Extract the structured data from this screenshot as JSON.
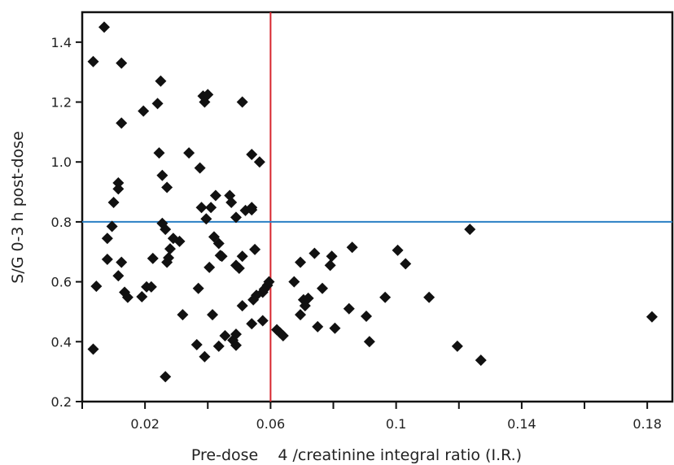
{
  "chart_data": {
    "type": "scatter",
    "xlabel": "Pre-dose    4 /creatinine integral ratio (I.R.)",
    "ylabel": "S/G 0-3 h post-dose",
    "xlim": [
      0.0,
      0.188
    ],
    "ylim": [
      0.2,
      1.5
    ],
    "x_ticks": [
      0.02,
      0.06,
      0.1,
      0.14,
      0.18
    ],
    "x_tick_labels": [
      "0.02",
      "0.06",
      "0.1",
      "0.14",
      "0.18"
    ],
    "x_minor_ticks": [
      0.0,
      0.04,
      0.08,
      0.12,
      0.16
    ],
    "y_ticks": [
      0.2,
      0.4,
      0.6,
      0.8,
      1.0,
      1.2,
      1.4
    ],
    "y_tick_labels": [
      "0.2",
      "0.4",
      "0.6",
      "0.8",
      "1.0",
      "1.2",
      "1.4"
    ],
    "grid": false,
    "reference_lines": [
      {
        "orientation": "vertical",
        "value": 0.06,
        "color": "#d7262e"
      },
      {
        "orientation": "horizontal",
        "value": 0.8,
        "color": "#2a7fc4"
      }
    ],
    "marker": {
      "shape": "diamond",
      "color": "#111111"
    },
    "points": [
      [
        0.0035,
        1.335
      ],
      [
        0.007,
        1.45
      ],
      [
        0.0125,
        1.33
      ],
      [
        0.0125,
        1.13
      ],
      [
        0.0045,
        0.585
      ],
      [
        0.0035,
        0.375
      ],
      [
        0.008,
        0.745
      ],
      [
        0.008,
        0.675
      ],
      [
        0.0095,
        0.785
      ],
      [
        0.01,
        0.865
      ],
      [
        0.0115,
        0.91
      ],
      [
        0.0115,
        0.93
      ],
      [
        0.0115,
        0.62
      ],
      [
        0.0125,
        0.665
      ],
      [
        0.0135,
        0.565
      ],
      [
        0.0145,
        0.548
      ],
      [
        0.0195,
        1.17
      ],
      [
        0.019,
        0.55
      ],
      [
        0.0205,
        0.583
      ],
      [
        0.022,
        0.583
      ],
      [
        0.0225,
        0.678
      ],
      [
        0.024,
        1.195
      ],
      [
        0.025,
        1.27
      ],
      [
        0.0245,
        1.03
      ],
      [
        0.0255,
        0.955
      ],
      [
        0.0255,
        0.795
      ],
      [
        0.027,
        0.915
      ],
      [
        0.0265,
        0.775
      ],
      [
        0.0275,
        0.68
      ],
      [
        0.028,
        0.71
      ],
      [
        0.029,
        0.745
      ],
      [
        0.031,
        0.735
      ],
      [
        0.027,
        0.665
      ],
      [
        0.032,
        0.49
      ],
      [
        0.034,
        1.03
      ],
      [
        0.0365,
        0.39
      ],
      [
        0.037,
        0.578
      ],
      [
        0.0375,
        0.98
      ],
      [
        0.038,
        0.848
      ],
      [
        0.0385,
        1.22
      ],
      [
        0.039,
        1.2
      ],
      [
        0.04,
        1.225
      ],
      [
        0.039,
        0.35
      ],
      [
        0.0395,
        0.81
      ],
      [
        0.0405,
        0.648
      ],
      [
        0.0415,
        0.49
      ],
      [
        0.041,
        0.848
      ],
      [
        0.042,
        0.75
      ],
      [
        0.0425,
        0.888
      ],
      [
        0.0435,
        0.728
      ],
      [
        0.044,
        0.688
      ],
      [
        0.0435,
        0.385
      ],
      [
        0.0445,
        0.685
      ],
      [
        0.0455,
        0.42
      ],
      [
        0.047,
        0.888
      ],
      [
        0.0475,
        0.865
      ],
      [
        0.048,
        0.405
      ],
      [
        0.049,
        0.425
      ],
      [
        0.049,
        0.388
      ],
      [
        0.049,
        0.815
      ],
      [
        0.049,
        0.655
      ],
      [
        0.05,
        0.645
      ],
      [
        0.051,
        0.685
      ],
      [
        0.051,
        1.2
      ],
      [
        0.051,
        0.52
      ],
      [
        0.052,
        0.838
      ],
      [
        0.054,
        0.848
      ],
      [
        0.054,
        0.84
      ],
      [
        0.054,
        0.46
      ],
      [
        0.054,
        1.025
      ],
      [
        0.0555,
        0.555
      ],
      [
        0.0565,
        1.0
      ],
      [
        0.0575,
        0.47
      ],
      [
        0.0575,
        0.565
      ],
      [
        0.058,
        0.575
      ],
      [
        0.059,
        0.588
      ],
      [
        0.055,
        0.708
      ],
      [
        0.0545,
        0.54
      ],
      [
        0.0595,
        0.6
      ],
      [
        0.062,
        0.44
      ],
      [
        0.063,
        0.43
      ],
      [
        0.064,
        0.42
      ],
      [
        0.0675,
        0.6
      ],
      [
        0.0695,
        0.665
      ],
      [
        0.0695,
        0.49
      ],
      [
        0.0705,
        0.54
      ],
      [
        0.071,
        0.52
      ],
      [
        0.072,
        0.545
      ],
      [
        0.074,
        0.695
      ],
      [
        0.075,
        0.45
      ],
      [
        0.0765,
        0.578
      ],
      [
        0.079,
        0.655
      ],
      [
        0.0795,
        0.685
      ],
      [
        0.0805,
        0.445
      ],
      [
        0.086,
        0.715
      ],
      [
        0.085,
        0.51
      ],
      [
        0.0905,
        0.485
      ],
      [
        0.0915,
        0.4
      ],
      [
        0.0965,
        0.548
      ],
      [
        0.1005,
        0.705
      ],
      [
        0.103,
        0.66
      ],
      [
        0.1105,
        0.548
      ],
      [
        0.1195,
        0.385
      ],
      [
        0.1235,
        0.775
      ],
      [
        0.127,
        0.338
      ],
      [
        0.1815,
        0.483
      ],
      [
        0.0265,
        0.283
      ]
    ]
  }
}
